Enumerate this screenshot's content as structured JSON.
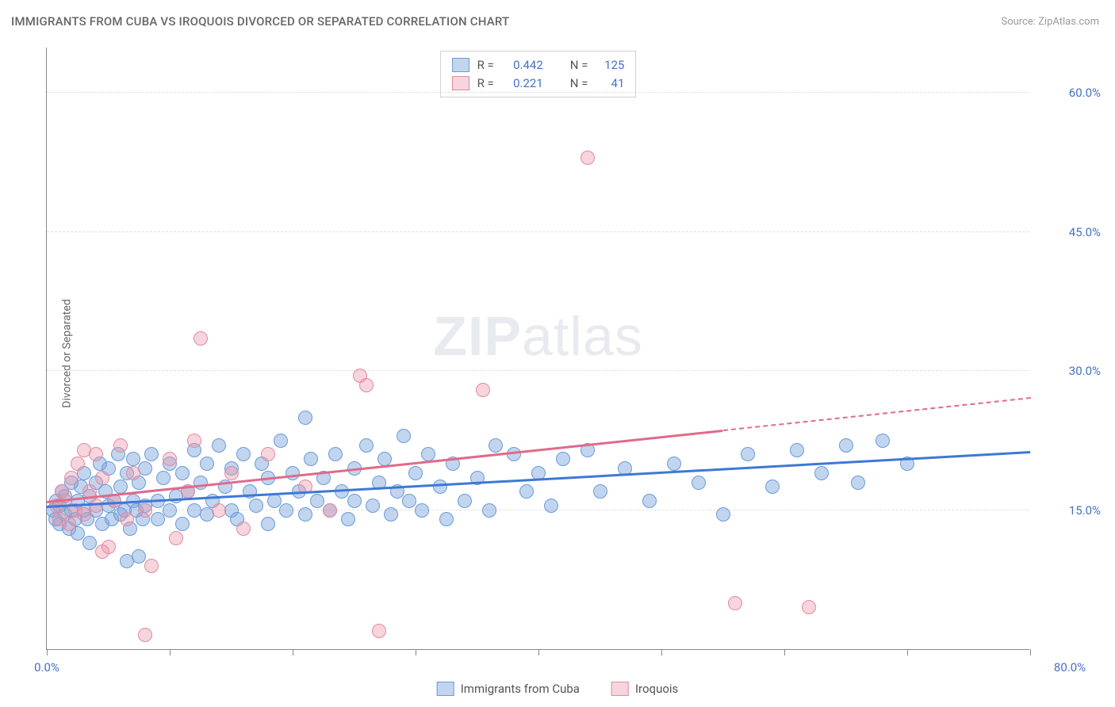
{
  "title": "IMMIGRANTS FROM CUBA VS IROQUOIS DIVORCED OR SEPARATED CORRELATION CHART",
  "source": "Source: ZipAtlas.com",
  "watermark": {
    "bold": "ZIP",
    "light": "atlas"
  },
  "chart": {
    "type": "scatter",
    "xlim": [
      0,
      80
    ],
    "ylim": [
      0,
      65
    ],
    "x_ticks": [
      0,
      10,
      20,
      30,
      40,
      50,
      60,
      70,
      80
    ],
    "x_tick_labels_shown": {
      "0": "0.0%",
      "80": "80.0%"
    },
    "y_ticks": [
      15,
      30,
      45,
      60
    ],
    "y_tick_labels": [
      "15.0%",
      "30.0%",
      "45.0%",
      "60.0%"
    ],
    "ylabel": "Divorced or Separated",
    "background_color": "#ffffff",
    "grid_color": "#e0e0e0",
    "axis_color": "#888888",
    "tick_label_color": "#4472c4",
    "point_radius": 9,
    "point_border_width": 1,
    "series": [
      {
        "name": "Immigrants from Cuba",
        "fill_color": "rgba(120,162,219,0.45)",
        "border_color": "#6a9bd8",
        "R": 0.442,
        "N": 125,
        "trend": {
          "x0": 0,
          "y0": 15.3,
          "x1": 80,
          "y1": 21.2,
          "solid_until_x": 80,
          "color": "#3e78d6"
        },
        "points": [
          [
            0.5,
            15.0
          ],
          [
            0.7,
            14.0
          ],
          [
            0.8,
            16.0
          ],
          [
            1.0,
            13.5
          ],
          [
            1.0,
            15.5
          ],
          [
            1.2,
            17.0
          ],
          [
            1.5,
            14.5
          ],
          [
            1.5,
            16.5
          ],
          [
            1.8,
            13.0
          ],
          [
            2.0,
            15.0
          ],
          [
            2.0,
            18.0
          ],
          [
            2.3,
            14.0
          ],
          [
            2.5,
            16.0
          ],
          [
            2.5,
            12.5
          ],
          [
            2.8,
            17.5
          ],
          [
            3.0,
            15.0
          ],
          [
            3.0,
            19.0
          ],
          [
            3.3,
            14.0
          ],
          [
            3.5,
            16.5
          ],
          [
            3.5,
            11.5
          ],
          [
            4.0,
            18.0
          ],
          [
            4.0,
            15.0
          ],
          [
            4.3,
            20.0
          ],
          [
            4.5,
            13.5
          ],
          [
            4.8,
            17.0
          ],
          [
            5.0,
            15.5
          ],
          [
            5.0,
            19.5
          ],
          [
            5.3,
            14.0
          ],
          [
            5.5,
            16.0
          ],
          [
            5.8,
            21.0
          ],
          [
            6.0,
            14.5
          ],
          [
            6.0,
            17.5
          ],
          [
            6.3,
            15.0
          ],
          [
            6.5,
            19.0
          ],
          [
            6.8,
            13.0
          ],
          [
            7.0,
            16.0
          ],
          [
            7.0,
            20.5
          ],
          [
            7.3,
            15.0
          ],
          [
            7.5,
            18.0
          ],
          [
            7.8,
            14.0
          ],
          [
            8.0,
            19.5
          ],
          [
            8.0,
            15.5
          ],
          [
            8.5,
            21.0
          ],
          [
            9.0,
            16.0
          ],
          [
            9.0,
            14.0
          ],
          [
            9.5,
            18.5
          ],
          [
            10.0,
            15.0
          ],
          [
            10.0,
            20.0
          ],
          [
            10.5,
            16.5
          ],
          [
            11.0,
            13.5
          ],
          [
            11.0,
            19.0
          ],
          [
            11.5,
            17.0
          ],
          [
            12.0,
            21.5
          ],
          [
            12.0,
            15.0
          ],
          [
            12.5,
            18.0
          ],
          [
            13.0,
            14.5
          ],
          [
            13.0,
            20.0
          ],
          [
            13.5,
            16.0
          ],
          [
            14.0,
            22.0
          ],
          [
            14.5,
            17.5
          ],
          [
            15.0,
            15.0
          ],
          [
            15.0,
            19.5
          ],
          [
            15.5,
            14.0
          ],
          [
            16.0,
            21.0
          ],
          [
            16.5,
            17.0
          ],
          [
            17.0,
            15.5
          ],
          [
            17.5,
            20.0
          ],
          [
            18.0,
            13.5
          ],
          [
            18.0,
            18.5
          ],
          [
            18.5,
            16.0
          ],
          [
            19.0,
            22.5
          ],
          [
            19.5,
            15.0
          ],
          [
            20.0,
            19.0
          ],
          [
            20.5,
            17.0
          ],
          [
            21.0,
            14.5
          ],
          [
            21.0,
            25.0
          ],
          [
            21.5,
            20.5
          ],
          [
            22.0,
            16.0
          ],
          [
            22.5,
            18.5
          ],
          [
            23.0,
            15.0
          ],
          [
            23.5,
            21.0
          ],
          [
            24.0,
            17.0
          ],
          [
            24.5,
            14.0
          ],
          [
            25.0,
            19.5
          ],
          [
            25.0,
            16.0
          ],
          [
            26.0,
            22.0
          ],
          [
            26.5,
            15.5
          ],
          [
            27.0,
            18.0
          ],
          [
            27.5,
            20.5
          ],
          [
            28.0,
            14.5
          ],
          [
            28.5,
            17.0
          ],
          [
            29.0,
            23.0
          ],
          [
            29.5,
            16.0
          ],
          [
            30.0,
            19.0
          ],
          [
            30.5,
            15.0
          ],
          [
            31.0,
            21.0
          ],
          [
            32.0,
            17.5
          ],
          [
            32.5,
            14.0
          ],
          [
            33.0,
            20.0
          ],
          [
            34.0,
            16.0
          ],
          [
            35.0,
            18.5
          ],
          [
            36.0,
            15.0
          ],
          [
            36.5,
            22.0
          ],
          [
            38.0,
            21.0
          ],
          [
            39.0,
            17.0
          ],
          [
            40.0,
            19.0
          ],
          [
            41.0,
            15.5
          ],
          [
            42.0,
            20.5
          ],
          [
            44.0,
            21.5
          ],
          [
            45.0,
            17.0
          ],
          [
            47.0,
            19.5
          ],
          [
            49.0,
            16.0
          ],
          [
            51.0,
            20.0
          ],
          [
            53.0,
            18.0
          ],
          [
            55.0,
            14.5
          ],
          [
            57.0,
            21.0
          ],
          [
            59.0,
            17.5
          ],
          [
            61.0,
            21.5
          ],
          [
            63.0,
            19.0
          ],
          [
            65.0,
            22.0
          ],
          [
            66.0,
            18.0
          ],
          [
            68.0,
            22.5
          ],
          [
            70.0,
            20.0
          ],
          [
            6.5,
            9.5
          ],
          [
            7.5,
            10.0
          ]
        ]
      },
      {
        "name": "Iroquois",
        "fill_color": "rgba(235,150,170,0.40)",
        "border_color": "#e08aa0",
        "R": 0.221,
        "N": 41,
        "trend": {
          "x0": 0,
          "y0": 15.8,
          "x1": 80,
          "y1": 27.0,
          "solid_until_x": 55,
          "color": "#e06a8a"
        },
        "points": [
          [
            0.8,
            15.5
          ],
          [
            1.0,
            14.0
          ],
          [
            1.2,
            17.0
          ],
          [
            1.5,
            16.0
          ],
          [
            1.8,
            13.5
          ],
          [
            2.0,
            18.5
          ],
          [
            2.3,
            15.0
          ],
          [
            2.5,
            20.0
          ],
          [
            3.0,
            14.5
          ],
          [
            3.0,
            21.5
          ],
          [
            3.5,
            17.0
          ],
          [
            4.0,
            21.0
          ],
          [
            4.0,
            15.5
          ],
          [
            4.5,
            18.5
          ],
          [
            5.0,
            11.0
          ],
          [
            5.5,
            16.0
          ],
          [
            6.0,
            22.0
          ],
          [
            6.5,
            14.0
          ],
          [
            7.0,
            19.0
          ],
          [
            8.0,
            15.0
          ],
          [
            8.5,
            9.0
          ],
          [
            10.0,
            20.5
          ],
          [
            10.5,
            12.0
          ],
          [
            11.5,
            17.0
          ],
          [
            12.0,
            22.5
          ],
          [
            12.5,
            33.5
          ],
          [
            14.0,
            15.0
          ],
          [
            15.0,
            19.0
          ],
          [
            16.0,
            13.0
          ],
          [
            18.0,
            21.0
          ],
          [
            21.0,
            17.5
          ],
          [
            23.0,
            15.0
          ],
          [
            25.5,
            29.5
          ],
          [
            26.0,
            28.5
          ],
          [
            27.0,
            2.0
          ],
          [
            35.5,
            28.0
          ],
          [
            44.0,
            53.0
          ],
          [
            56.0,
            5.0
          ],
          [
            62.0,
            4.5
          ],
          [
            8.0,
            1.5
          ],
          [
            4.5,
            10.5
          ]
        ]
      }
    ]
  },
  "legend_top": {
    "r_label": "R =",
    "n_label": "N ="
  },
  "legend_bottom": {
    "items": [
      "Immigrants from Cuba",
      "Iroquois"
    ]
  }
}
